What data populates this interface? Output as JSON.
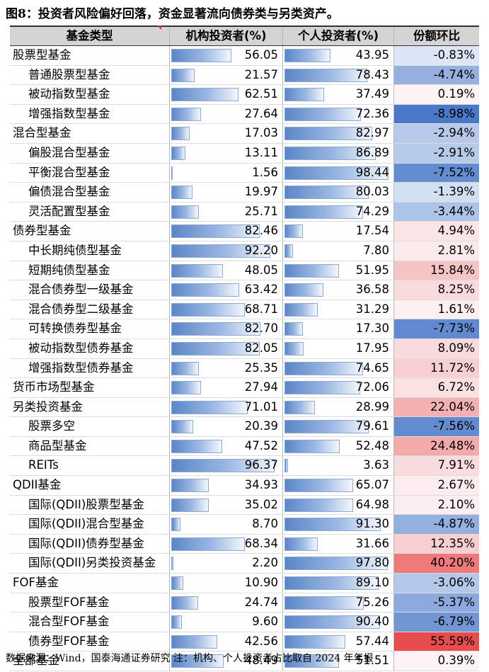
{
  "title": "图8：投资者风险偏好回落，资金显著流向债券类与另类资产。",
  "columns": [
    "基金类型",
    "机构投资者(%)",
    "个人投资者(%)",
    "份额环比"
  ],
  "rows": [
    {
      "name": "股票型基金",
      "indent": false,
      "inst": "56.05",
      "ind": "43.95",
      "chg": "-0.83%",
      "chg_value": -0.83
    },
    {
      "name": "普通股票型基金",
      "indent": true,
      "inst": "21.57",
      "ind": "78.43",
      "chg": "-4.74%",
      "chg_value": -4.74
    },
    {
      "name": "被动指数型基金",
      "indent": true,
      "inst": "62.51",
      "ind": "37.49",
      "chg": "0.19%",
      "chg_value": 0.19
    },
    {
      "name": "增强指数型基金",
      "indent": true,
      "inst": "27.64",
      "ind": "72.36",
      "chg": "-8.98%",
      "chg_value": -8.98
    },
    {
      "name": "混合型基金",
      "indent": false,
      "inst": "17.03",
      "ind": "82.97",
      "chg": "-2.94%",
      "chg_value": -2.94
    },
    {
      "name": "偏股混合型基金",
      "indent": true,
      "inst": "13.11",
      "ind": "86.89",
      "chg": "-2.91%",
      "chg_value": -2.91
    },
    {
      "name": "平衡混合型基金",
      "indent": true,
      "inst": "1.56",
      "ind": "98.44",
      "chg": "-7.52%",
      "chg_value": -7.52
    },
    {
      "name": "偏债混合型基金",
      "indent": true,
      "inst": "19.97",
      "ind": "80.03",
      "chg": "-1.39%",
      "chg_value": -1.39
    },
    {
      "name": "灵活配置型基金",
      "indent": true,
      "inst": "25.71",
      "ind": "74.29",
      "chg": "-3.44%",
      "chg_value": -3.44
    },
    {
      "name": "债券型基金",
      "indent": false,
      "inst": "82.46",
      "ind": "17.54",
      "chg": "4.94%",
      "chg_value": 4.94
    },
    {
      "name": "中长期纯债型基金",
      "indent": true,
      "inst": "92.20",
      "ind": "7.80",
      "chg": "2.81%",
      "chg_value": 2.81
    },
    {
      "name": "短期纯债型基金",
      "indent": true,
      "inst": "48.05",
      "ind": "51.95",
      "chg": "15.84%",
      "chg_value": 15.84
    },
    {
      "name": "混合债券型一级基金",
      "indent": true,
      "inst": "63.42",
      "ind": "36.58",
      "chg": "8.25%",
      "chg_value": 8.25
    },
    {
      "name": "混合债券型二级基金",
      "indent": true,
      "inst": "68.71",
      "ind": "31.29",
      "chg": "1.61%",
      "chg_value": 1.61
    },
    {
      "name": "可转换债券型基金",
      "indent": true,
      "inst": "82.70",
      "ind": "17.30",
      "chg": "-7.73%",
      "chg_value": -7.73
    },
    {
      "name": "被动指数型债券基金",
      "indent": true,
      "inst": "82.05",
      "ind": "17.95",
      "chg": "8.09%",
      "chg_value": 8.09
    },
    {
      "name": "增强指数型债券基金",
      "indent": true,
      "inst": "25.35",
      "ind": "74.65",
      "chg": "11.72%",
      "chg_value": 11.72
    },
    {
      "name": "货币市场型基金",
      "indent": false,
      "inst": "27.94",
      "ind": "72.06",
      "chg": "6.72%",
      "chg_value": 6.72
    },
    {
      "name": "另类投资基金",
      "indent": false,
      "inst": "71.01",
      "ind": "28.99",
      "chg": "22.04%",
      "chg_value": 22.04
    },
    {
      "name": "股票多空",
      "indent": true,
      "inst": "20.39",
      "ind": "79.61",
      "chg": "-7.56%",
      "chg_value": -7.56
    },
    {
      "name": "商品型基金",
      "indent": true,
      "inst": "47.52",
      "ind": "52.48",
      "chg": "24.48%",
      "chg_value": 24.48
    },
    {
      "name": "REITs",
      "indent": true,
      "inst": "96.37",
      "ind": "3.63",
      "chg": "7.91%",
      "chg_value": 7.91
    },
    {
      "name": "QDII基金",
      "indent": false,
      "inst": "34.93",
      "ind": "65.07",
      "chg": "2.67%",
      "chg_value": 2.67
    },
    {
      "name": "国际(QDII)股票型基金",
      "indent": true,
      "inst": "35.02",
      "ind": "64.98",
      "chg": "2.10%",
      "chg_value": 2.1
    },
    {
      "name": "国际(QDII)混合型基金",
      "indent": true,
      "inst": "8.70",
      "ind": "91.30",
      "chg": "-4.87%",
      "chg_value": -4.87
    },
    {
      "name": "国际(QDII)债券型基金",
      "indent": true,
      "inst": "68.34",
      "ind": "31.66",
      "chg": "12.35%",
      "chg_value": 12.35
    },
    {
      "name": "国际(QDII)另类投资基金",
      "indent": true,
      "inst": "2.20",
      "ind": "97.80",
      "chg": "40.20%",
      "chg_value": 40.2
    },
    {
      "name": "FOF基金",
      "indent": false,
      "inst": "10.90",
      "ind": "89.10",
      "chg": "-3.06%",
      "chg_value": -3.06
    },
    {
      "name": "股票型FOF基金",
      "indent": true,
      "inst": "24.74",
      "ind": "75.26",
      "chg": "-5.37%",
      "chg_value": -5.37
    },
    {
      "name": "混合型FOF基金",
      "indent": true,
      "inst": "9.60",
      "ind": "90.40",
      "chg": "-6.79%",
      "chg_value": -6.79
    },
    {
      "name": "债券型FOF基金",
      "indent": true,
      "inst": "42.56",
      "ind": "57.44",
      "chg": "55.59%",
      "chg_value": 55.59
    },
    {
      "name": "全部基金",
      "indent": false,
      "inst": "48.49",
      "ind": "51.51",
      "chg": "0.39%",
      "chg_value": 0.39
    }
  ],
  "source": "数据来源：Wind，国泰海通证券研究  注：机构、个人投资者占比取自 2024 年年报",
  "colors": {
    "negative": "#4a78c8",
    "positive": "#e84a4a",
    "bar": "#5a86c7",
    "header": "#d4d4d4"
  }
}
